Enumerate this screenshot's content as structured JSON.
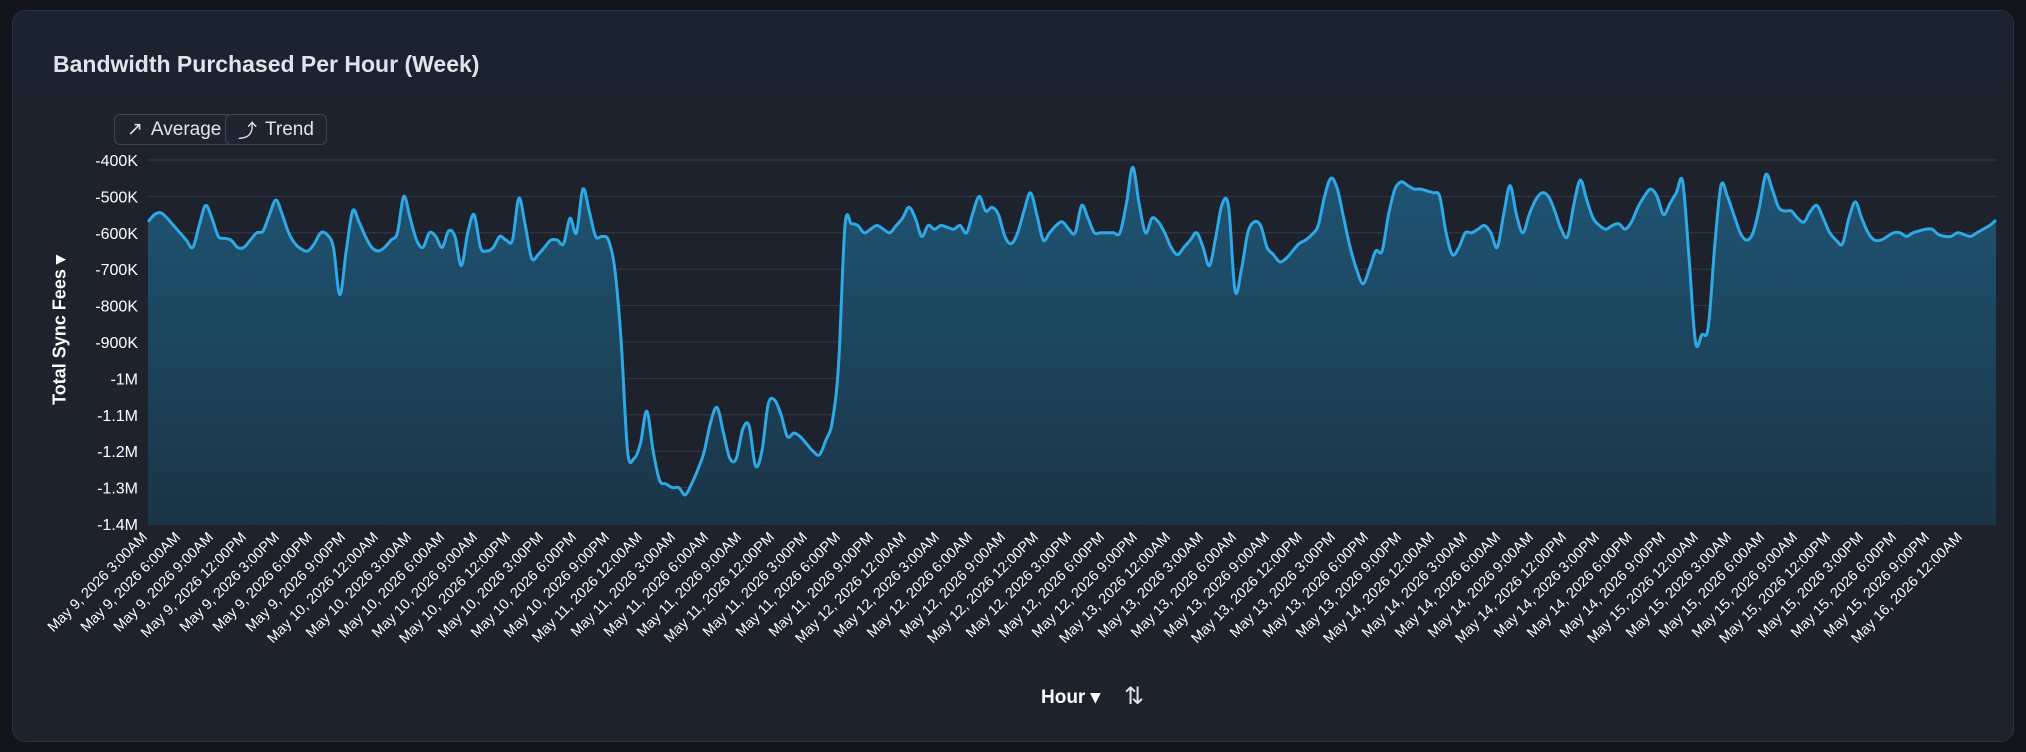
{
  "title": "Bandwidth Purchased Per Hour (Week)",
  "buttons": [
    {
      "label": "Average",
      "icon": "arrow-up-right-icon",
      "glyph": "↗"
    },
    {
      "label": "Trend",
      "icon": "trend-curve-icon",
      "glyph": "⤴"
    }
  ],
  "y_axis_label": "Total Sync Fees ▾",
  "x_axis_label": "Hour ▾",
  "sort_glyph": "⇅",
  "colors": {
    "line": "#2fa8e6",
    "fill_top": "#1f5878",
    "fill_bottom": "#1a3548",
    "grid": "#343b49",
    "text": "#ffffff"
  },
  "chart_data": {
    "type": "area",
    "ylabel": "Total Sync Fees",
    "xlabel": "Hour",
    "ylim": [
      -1400000,
      -400000
    ],
    "yticks": [
      {
        "value": -400000,
        "label": "-400K"
      },
      {
        "value": -500000,
        "label": "-500K"
      },
      {
        "value": -600000,
        "label": "-600K"
      },
      {
        "value": -700000,
        "label": "-700K"
      },
      {
        "value": -800000,
        "label": "-800K"
      },
      {
        "value": -900000,
        "label": "-900K"
      },
      {
        "value": -1000000,
        "label": "-1M"
      },
      {
        "value": -1100000,
        "label": "-1.1M"
      },
      {
        "value": -1200000,
        "label": "-1.2M"
      },
      {
        "value": -1300000,
        "label": "-1.3M"
      },
      {
        "value": -1400000,
        "label": "-1.4M"
      }
    ],
    "xticks": [
      "May 9, 2026 3:00AM",
      "May 9, 2026 6:00AM",
      "May 9, 2026 9:00AM",
      "May 9, 2026 12:00PM",
      "May 9, 2026 3:00PM",
      "May 9, 2026 6:00PM",
      "May 9, 2026 9:00PM",
      "May 10, 2026 12:00AM",
      "May 10, 2026 3:00AM",
      "May 10, 2026 6:00AM",
      "May 10, 2026 9:00AM",
      "May 10, 2026 12:00PM",
      "May 10, 2026 3:00PM",
      "May 10, 2026 6:00PM",
      "May 10, 2026 9:00PM",
      "May 11, 2026 12:00AM",
      "May 11, 2026 3:00AM",
      "May 11, 2026 6:00AM",
      "May 11, 2026 9:00AM",
      "May 11, 2026 12:00PM",
      "May 11, 2026 3:00PM",
      "May 11, 2026 6:00PM",
      "May 11, 2026 9:00PM",
      "May 12, 2026 12:00AM",
      "May 12, 2026 3:00AM",
      "May 12, 2026 6:00AM",
      "May 12, 2026 9:00AM",
      "May 12, 2026 12:00PM",
      "May 12, 2026 3:00PM",
      "May 12, 2026 6:00PM",
      "May 12, 2026 9:00PM",
      "May 13, 2026 12:00AM",
      "May 13, 2026 3:00AM",
      "May 13, 2026 6:00AM",
      "May 13, 2026 9:00AM",
      "May 13, 2026 12:00PM",
      "May 13, 2026 3:00PM",
      "May 13, 2026 6:00PM",
      "May 13, 2026 9:00PM",
      "May 14, 2026 12:00AM",
      "May 14, 2026 3:00AM",
      "May 14, 2026 6:00AM",
      "May 14, 2026 9:00AM",
      "May 14, 2026 12:00PM",
      "May 14, 2026 3:00PM",
      "May 14, 2026 6:00PM",
      "May 14, 2026 9:00PM",
      "May 15, 2026 12:00AM",
      "May 15, 2026 3:00AM",
      "May 15, 2026 6:00AM",
      "May 15, 2026 9:00AM",
      "May 15, 2026 12:00PM",
      "May 15, 2026 3:00PM",
      "May 15, 2026 6:00PM",
      "May 15, 2026 9:00PM",
      "May 16, 2026 12:00AM"
    ],
    "series": [
      {
        "values": [
          -570000,
          -550000,
          -545000,
          -560000,
          -580000,
          -600000,
          -620000,
          -640000,
          -580000,
          -525000,
          -560000,
          -610000,
          -615000,
          -620000,
          -640000,
          -640000,
          -620000,
          -600000,
          -595000,
          -550000,
          -510000,
          -550000,
          -600000,
          -630000,
          -645000,
          -650000,
          -630000,
          -600000,
          -605000,
          -640000,
          -770000,
          -650000,
          -540000,
          -570000,
          -610000,
          -640000,
          -650000,
          -640000,
          -620000,
          -600000,
          -500000,
          -560000,
          -620000,
          -640000,
          -600000,
          -610000,
          -640000,
          -595000,
          -610000,
          -690000,
          -600000,
          -550000,
          -640000,
          -650000,
          -640000,
          -610000,
          -620000,
          -620000,
          -505000,
          -580000,
          -670000,
          -660000,
          -640000,
          -620000,
          -620000,
          -630000,
          -560000,
          -600000,
          -480000,
          -540000,
          -610000,
          -610000,
          -620000,
          -700000,
          -900000,
          -1200000,
          -1220000,
          -1180000,
          -1090000,
          -1200000,
          -1280000,
          -1290000,
          -1300000,
          -1300000,
          -1320000,
          -1290000,
          -1250000,
          -1200000,
          -1120000,
          -1080000,
          -1150000,
          -1220000,
          -1220000,
          -1140000,
          -1130000,
          -1240000,
          -1200000,
          -1070000,
          -1060000,
          -1100000,
          -1160000,
          -1150000,
          -1160000,
          -1180000,
          -1200000,
          -1210000,
          -1170000,
          -1120000,
          -960000,
          -580000,
          -575000,
          -580000,
          -600000,
          -590000,
          -580000,
          -590000,
          -600000,
          -580000,
          -560000,
          -530000,
          -560000,
          -610000,
          -580000,
          -590000,
          -580000,
          -585000,
          -590000,
          -580000,
          -600000,
          -545000,
          -500000,
          -540000,
          -530000,
          -550000,
          -610000,
          -630000,
          -600000,
          -540000,
          -490000,
          -550000,
          -620000,
          -600000,
          -580000,
          -570000,
          -590000,
          -600000,
          -525000,
          -560000,
          -600000,
          -600000,
          -600000,
          -600000,
          -600000,
          -520000,
          -420000,
          -520000,
          -600000,
          -560000,
          -570000,
          -600000,
          -640000,
          -660000,
          -640000,
          -620000,
          -600000,
          -640000,
          -690000,
          -610000,
          -520000,
          -530000,
          -760000,
          -700000,
          -600000,
          -570000,
          -580000,
          -640000,
          -660000,
          -680000,
          -670000,
          -650000,
          -630000,
          -620000,
          -605000,
          -580000,
          -500000,
          -450000,
          -480000,
          -560000,
          -640000,
          -700000,
          -740000,
          -700000,
          -650000,
          -650000,
          -550000,
          -480000,
          -460000,
          -470000,
          -480000,
          -480000,
          -485000,
          -490000,
          -500000,
          -600000,
          -660000,
          -640000,
          -600000,
          -600000,
          -590000,
          -580000,
          -600000,
          -640000,
          -550000,
          -470000,
          -550000,
          -600000,
          -550000,
          -510000,
          -490000,
          -500000,
          -540000,
          -590000,
          -610000,
          -520000,
          -455000,
          -510000,
          -560000,
          -580000,
          -590000,
          -580000,
          -575000,
          -590000,
          -570000,
          -530000,
          -500000,
          -480000,
          -500000,
          -550000,
          -520000,
          -490000,
          -460000,
          -670000,
          -900000,
          -880000,
          -860000,
          -640000,
          -470000,
          -500000,
          -550000,
          -600000,
          -620000,
          -600000,
          -530000,
          -440000,
          -480000,
          -530000,
          -540000,
          -540000,
          -560000,
          -570000,
          -540000,
          -525000,
          -560000,
          -600000,
          -620000,
          -630000,
          -560000,
          -515000,
          -560000,
          -600000,
          -620000,
          -620000,
          -610000,
          -600000,
          -600000,
          -610000,
          -600000,
          -595000,
          -590000,
          -590000,
          -605000,
          -610000,
          -610000,
          -600000,
          -605000,
          -610000,
          -600000,
          -590000,
          -580000,
          -565000
        ]
      }
    ]
  }
}
